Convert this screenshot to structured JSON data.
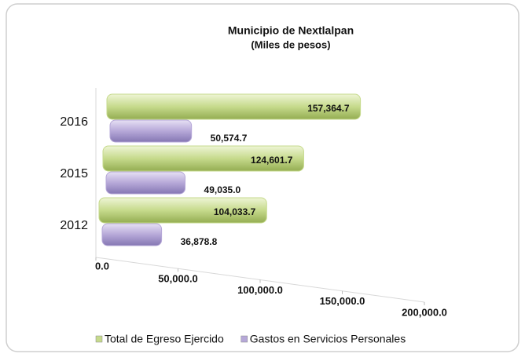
{
  "chart_data": {
    "type": "bar",
    "orientation": "horizontal",
    "title": "Municipio de Nextlalpan",
    "subtitle": "(Miles de pesos)",
    "categories": [
      "2012",
      "2015",
      "2016"
    ],
    "series": [
      {
        "name": "Total de Egreso Ejercido",
        "color": "#c6da8c",
        "values": [
          104033.7,
          124601.7,
          157364.7
        ],
        "value_labels": [
          "104,033.7",
          "124,601.7",
          "157,364.7"
        ]
      },
      {
        "name": "Gastos en Servicios Personales",
        "color": "#b6a8d8",
        "values": [
          36878.8,
          49035.0,
          50574.7
        ],
        "value_labels": [
          "36,878.8",
          "49,035.0",
          "50,574.7"
        ]
      }
    ],
    "xlim": [
      0,
      200000
    ],
    "xticks": [
      {
        "value": 0,
        "label": "0.0"
      },
      {
        "value": 50000,
        "label": "50,000.0"
      },
      {
        "value": 100000,
        "label": "100,000.0"
      },
      {
        "value": 150000,
        "label": "150,000.0"
      },
      {
        "value": 200000,
        "label": "200,000.0"
      }
    ],
    "legend": "bottom"
  }
}
